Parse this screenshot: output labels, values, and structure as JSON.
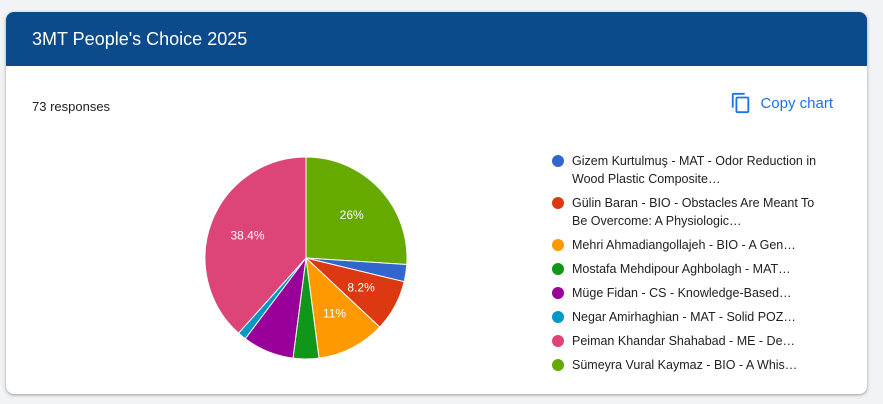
{
  "header": {
    "title": "3MT People's Choice 2025"
  },
  "summary": {
    "responses_label": "73 responses"
  },
  "toolbar": {
    "copy_label": "Copy chart",
    "copy_icon": "copy-icon"
  },
  "chart_data": {
    "type": "pie",
    "categories": [
      "Gizem Kurtulmuş - MAT - Odor Reduction in Wood Plastic Composites",
      "Gülin Baran - BIO - Obstacles Are Meant To Be Overcome: A Physiological",
      "Mehri Ahmadiangollajeh - BIO - A Genetic",
      "Mostafa Mehdipour Aghbolagh - MAT",
      "Müge Fidan - CS - Knowledge-Based",
      "Negar Amirhaghian - MAT - Solid POZ",
      "Peiman Khandar Shahabad - ME - Deep",
      "Sümeyra Vural Kaymaz - BIO - A Whis"
    ],
    "legend_display": [
      "Gizem Kurtulmuş - MAT - Odor Reduction in Wood Plastic Composite…",
      "Gülin Baran - BIO - Obstacles Are Meant To Be Overcome: A Physiologic…",
      "Mehri Ahmadiangollajeh - BIO - A Gen…",
      "Mostafa Mehdipour Aghbolagh - MAT…",
      "Müge Fidan - CS - Knowledge-Based…",
      "Negar Amirhaghian - MAT - Solid POZ…",
      "Peiman Khandar Shahabad - ME - De…",
      "Sümeyra Vural Kaymaz - BIO - A Whis…"
    ],
    "values": [
      2,
      6,
      8,
      3,
      6,
      1,
      28,
      19
    ],
    "percent_labels": [
      "",
      "8.2%",
      "11%",
      "",
      "",
      "",
      "38.4%",
      "26%"
    ],
    "colors": [
      "#3366cc",
      "#dc3912",
      "#ff9900",
      "#109618",
      "#990099",
      "#0099c6",
      "#dd4477",
      "#66aa00"
    ],
    "start_category": "Sümeyra Vural Kaymaz - BIO - A Whis",
    "legend_position": "right"
  }
}
